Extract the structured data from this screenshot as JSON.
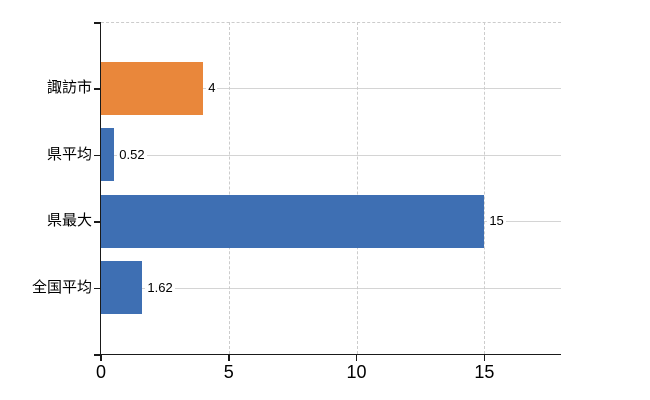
{
  "chart_data": {
    "type": "bar",
    "orientation": "horizontal",
    "title": "",
    "xlabel": "",
    "ylabel": "",
    "categories": [
      "諏訪市",
      "県平均",
      "県最大",
      "全国平均"
    ],
    "values": [
      4,
      0.52,
      15,
      1.62
    ],
    "value_labels": [
      "4",
      "0.52",
      "15",
      "1.62"
    ],
    "bar_colors": [
      "#E9873B",
      "#3E6FB3",
      "#3E6FB3",
      "#3E6FB3"
    ],
    "x_ticks": [
      0,
      5,
      10,
      15
    ],
    "x_tick_labels": [
      "0",
      "5",
      "10",
      "15"
    ],
    "xlim": [
      0,
      18
    ],
    "grid": true,
    "legend": false,
    "colors": {
      "background": "#FFFFFF",
      "axis": "#1A1A1A",
      "gridline_horizontal": "#D4D4D4",
      "gridline_vertical": "#CCCCCC",
      "text": "#000000",
      "orange_bar": "#E9873B",
      "blue_bar": "#3E6FB3"
    }
  }
}
